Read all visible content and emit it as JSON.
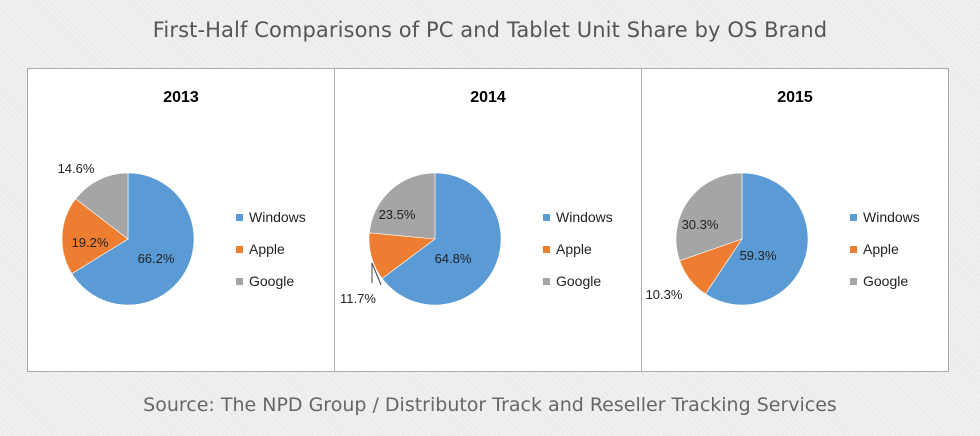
{
  "title": "First-Half Comparisons of PC and Tablet Unit Share by OS Brand",
  "source": "Source: The NPD Group / Distributor Track and Reseller Tracking Services",
  "colors": {
    "Windows": "#5b9bd5",
    "Apple": "#ed7d31",
    "Google": "#a5a5a5"
  },
  "chart_data": [
    {
      "type": "pie",
      "title": "2013",
      "categories": [
        "Windows",
        "Apple",
        "Google"
      ],
      "values": [
        66.2,
        19.2,
        14.6
      ],
      "labels": [
        "66.2%",
        "19.2%",
        "14.6%"
      ],
      "legend_position": "right"
    },
    {
      "type": "pie",
      "title": "2014",
      "categories": [
        "Windows",
        "Apple",
        "Google"
      ],
      "values": [
        64.8,
        11.7,
        23.5
      ],
      "labels": [
        "64.8%",
        "11.7%",
        "23.5%"
      ],
      "legend_position": "right"
    },
    {
      "type": "pie",
      "title": "2015",
      "categories": [
        "Windows",
        "Apple",
        "Google"
      ],
      "values": [
        59.3,
        10.3,
        30.3
      ],
      "labels": [
        "59.3%",
        "10.3%",
        "30.3%"
      ],
      "legend_position": "right"
    }
  ]
}
